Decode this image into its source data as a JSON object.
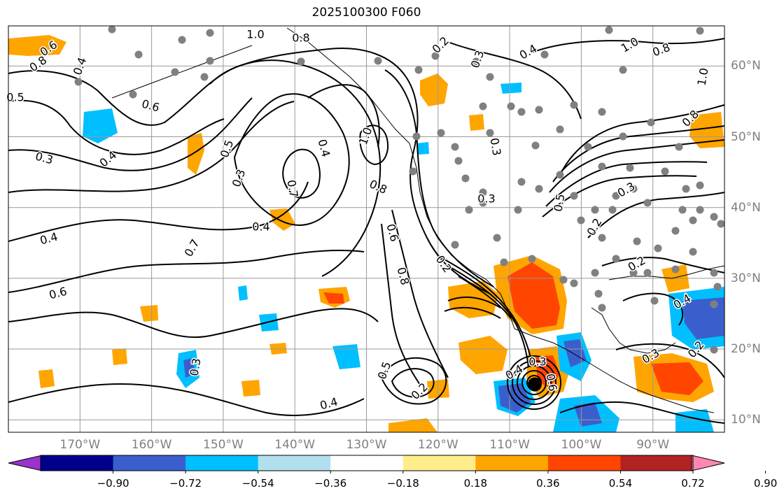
{
  "title": "2025100300 F060",
  "map": {
    "lon_labels": [
      "170°W",
      "160°W",
      "150°W",
      "140°W",
      "130°W",
      "120°W",
      "110°W",
      "100°W",
      "90°W"
    ],
    "lat_labels": [
      "60°N",
      "50°N",
      "40°N",
      "30°N",
      "20°N",
      "10°N"
    ],
    "contour_labels": [
      {
        "text": "0.6"
      },
      {
        "text": "0.8"
      },
      {
        "text": "0.4"
      },
      {
        "text": "0.5"
      },
      {
        "text": "1.0"
      },
      {
        "text": "0.8"
      },
      {
        "text": "0.6"
      },
      {
        "text": "0.3"
      },
      {
        "text": "0.4"
      },
      {
        "text": "0.5"
      },
      {
        "text": "0.3"
      },
      {
        "text": "0.7"
      },
      {
        "text": "0.4"
      },
      {
        "text": "1.0"
      },
      {
        "text": "0.8"
      },
      {
        "text": "0.4"
      },
      {
        "text": "0.4"
      },
      {
        "text": "0.6"
      },
      {
        "text": "0.7"
      },
      {
        "text": "0.6"
      },
      {
        "text": "0.8"
      },
      {
        "text": "0.2"
      },
      {
        "text": "0.4"
      },
      {
        "text": "0.5"
      },
      {
        "text": "0.3"
      },
      {
        "text": "0.2"
      },
      {
        "text": "0.3"
      },
      {
        "text": "0.4"
      },
      {
        "text": "1.0"
      },
      {
        "text": "0.8"
      },
      {
        "text": "1.0"
      },
      {
        "text": "0.8"
      },
      {
        "text": "0.3"
      },
      {
        "text": "0.5"
      },
      {
        "text": "0.2"
      },
      {
        "text": "0.3"
      },
      {
        "text": "0.2"
      },
      {
        "text": "0.4"
      },
      {
        "text": "0.2"
      },
      {
        "text": "0.3"
      },
      {
        "text": "0.4"
      },
      {
        "text": "0.3"
      },
      {
        "text": "0.6"
      },
      {
        "text": "0.2"
      },
      {
        "text": "0.3"
      }
    ],
    "cyclone_marker": {
      "lon": -106.5,
      "lat": 15.0
    }
  },
  "colorbar": {
    "ticks": [
      "−0.90",
      "−0.72",
      "−0.54",
      "−0.36",
      "−0.18",
      "0.18",
      "0.36",
      "0.54",
      "0.72",
      "0.90"
    ],
    "colors": [
      "#9a32cd",
      "#00008b",
      "#3a5fcd",
      "#00bfff",
      "#b2dfee",
      "#ffffff",
      "#ffec8b",
      "#ffa500",
      "#ff4500",
      "#b22222",
      "#ff88b0"
    ]
  }
}
